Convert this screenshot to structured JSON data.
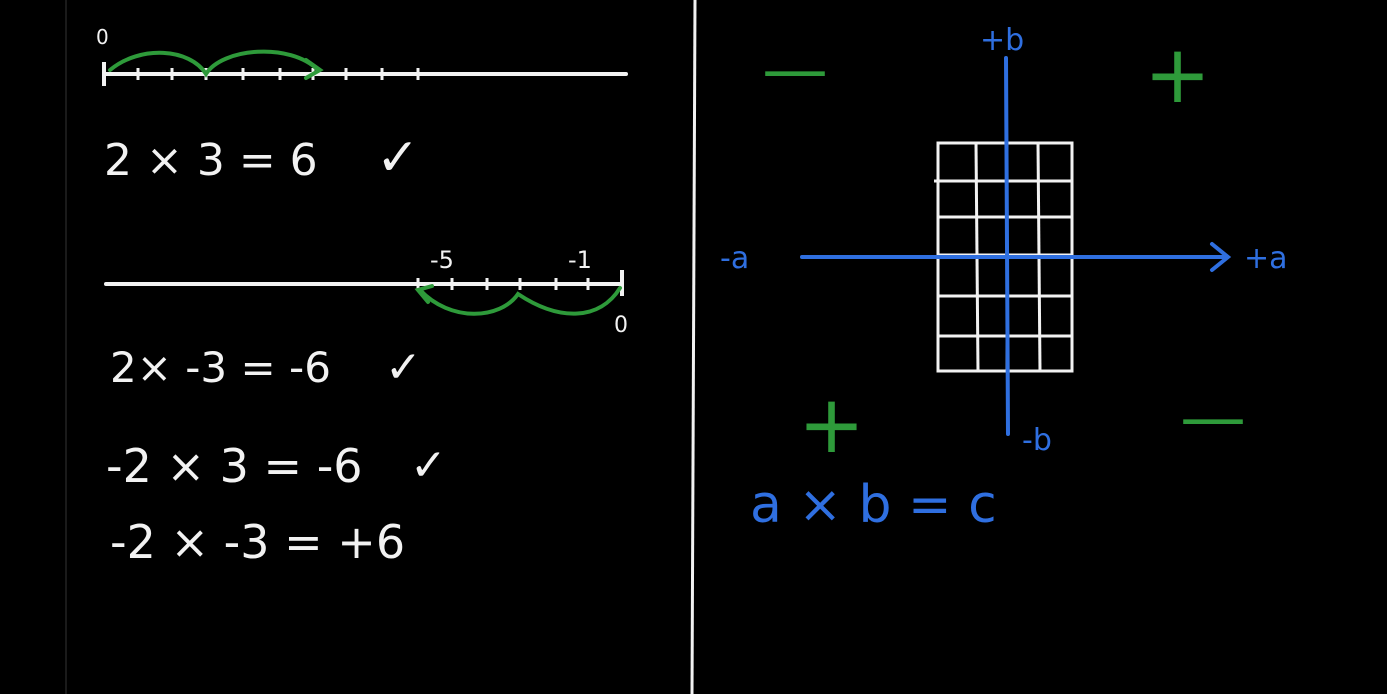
{
  "colors": {
    "chalk": "#f2f2f2",
    "blue": "#2f6fe0",
    "green": "#2e9a3a",
    "background": "#000000"
  },
  "left_panel": {
    "number_line_top": {
      "zero_label": "0"
    },
    "eq1": {
      "text": "2 × 3 = 6",
      "check": "✓"
    },
    "number_line_bottom": {
      "label_neg5": "-5",
      "label_neg1": "-1",
      "zero_label": "0"
    },
    "eq2": {
      "text": "2× -3 = -6",
      "check": "✓"
    },
    "eq3": {
      "text": "-2 × 3 = -6",
      "check": "✓"
    },
    "eq4": {
      "text": "-2 × -3 = +6"
    }
  },
  "right_panel": {
    "axis_labels": {
      "pos_b": "+b",
      "neg_b": "-b",
      "neg_a": "-a",
      "pos_a": "+a"
    },
    "quadrant_signs": {
      "top_left": "—",
      "top_right": "+",
      "bottom_left": "+",
      "bottom_right": "—"
    },
    "formula": "a × b = c"
  }
}
